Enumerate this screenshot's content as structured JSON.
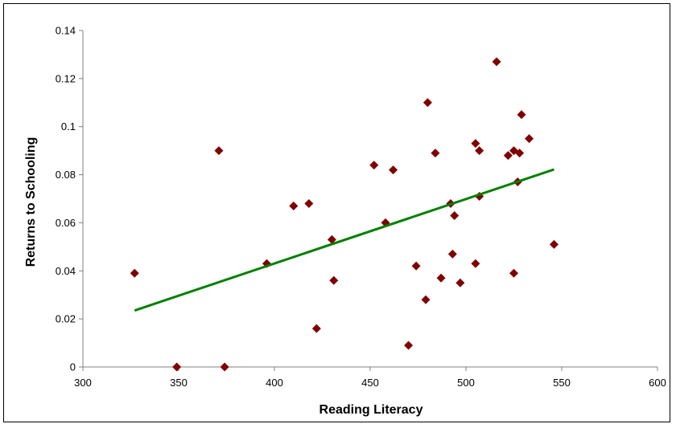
{
  "chart_data": {
    "type": "scatter",
    "title": "",
    "xlabel": "Reading Literacy",
    "ylabel": "Returns to Schooling",
    "xlim": [
      300,
      600
    ],
    "ylim": [
      0,
      0.14
    ],
    "x_ticks": [
      300,
      350,
      400,
      450,
      500,
      550,
      600
    ],
    "y_ticks": [
      0,
      0.02,
      0.04,
      0.06,
      0.08,
      0.1,
      0.12,
      0.14
    ],
    "x_tick_labels": [
      "300",
      "350",
      "400",
      "450",
      "500",
      "550",
      "600"
    ],
    "y_tick_labels": [
      "0",
      "0.02",
      "0.04",
      "0.06",
      "0.08",
      "0.1",
      "0.12",
      "0.14"
    ],
    "grid": false,
    "legend": "none",
    "series": [
      {
        "marker": "diamond",
        "color": "#800000",
        "points": [
          [
            327,
            0.039
          ],
          [
            349,
            0.0
          ],
          [
            371,
            0.09
          ],
          [
            374,
            0.0
          ],
          [
            396,
            0.043
          ],
          [
            410,
            0.067
          ],
          [
            418,
            0.068
          ],
          [
            422,
            0.016
          ],
          [
            430,
            0.053
          ],
          [
            431,
            0.036
          ],
          [
            452,
            0.084
          ],
          [
            458,
            0.06
          ],
          [
            462,
            0.082
          ],
          [
            470,
            0.009
          ],
          [
            474,
            0.042
          ],
          [
            479,
            0.028
          ],
          [
            480,
            0.11
          ],
          [
            484,
            0.089
          ],
          [
            487,
            0.037
          ],
          [
            492,
            0.068
          ],
          [
            493,
            0.047
          ],
          [
            494,
            0.063
          ],
          [
            497,
            0.035
          ],
          [
            505,
            0.093
          ],
          [
            505,
            0.043
          ],
          [
            507,
            0.09
          ],
          [
            507,
            0.071
          ],
          [
            516,
            0.127
          ],
          [
            522,
            0.088
          ],
          [
            525,
            0.09
          ],
          [
            525,
            0.039
          ],
          [
            527,
            0.077
          ],
          [
            528,
            0.089
          ],
          [
            529,
            0.105
          ],
          [
            533,
            0.095
          ],
          [
            546,
            0.051
          ]
        ]
      }
    ],
    "trendline": {
      "type": "linear",
      "color": "#008000",
      "x": [
        327,
        546
      ],
      "y": [
        0.0235,
        0.0822
      ]
    }
  }
}
